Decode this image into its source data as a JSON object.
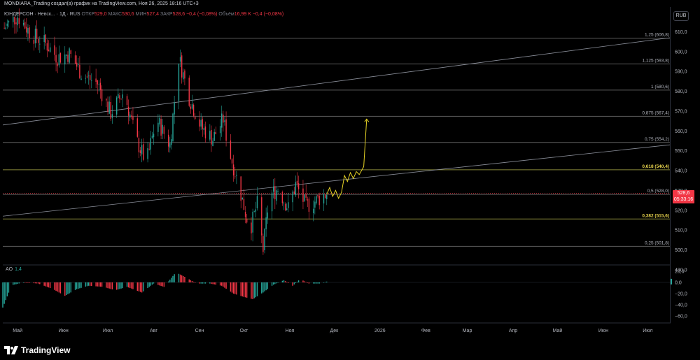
{
  "caption": "MONDIARA_Trading создал(а) график на TradingView.com, Ноя 26, 2025 18:16 UTC+3",
  "symbol_line": "ЮНДЕРСОН · Невск... · 1Д · RUS",
  "ohlc": {
    "open_label": "ОТКР",
    "open": "529,0",
    "high_label": "МАКС",
    "high": "530,6",
    "low_label": "МИН",
    "low": "527,4",
    "close_label": "ЗАКР",
    "close": "528,6",
    "change": "−0,4 (−0,08%)",
    "vol_label": "Объём",
    "vol": "16,99 K",
    "vol_change": "−0,4 (−0,08%)"
  },
  "currency": "RUB",
  "last_price": "528,6",
  "countdown": "05:33:16",
  "indicator": {
    "name": "AO",
    "value": "1,4"
  },
  "brand": "TradingView",
  "colors": {
    "up": "#26a69a",
    "down": "#f23645",
    "fib": "#8a8a3a",
    "fib_gold": "#e8d44d",
    "proj": "#e6d325"
  },
  "chart_data": {
    "type": "candlestick",
    "x_ticks": [
      "Май",
      "Июн",
      "Июл",
      "Авг",
      "Сен",
      "Окт",
      "Ноя",
      "Дек",
      "2026",
      "Фев",
      "Мар",
      "Апр",
      "Май",
      "Июн",
      "Июл"
    ],
    "y_ticks": [
      "610,0",
      "600,0",
      "590,0",
      "580,0",
      "570,0",
      "560,0",
      "550,0",
      "540,0",
      "530,0",
      "520,0",
      "510,0",
      "500,0",
      "490,0"
    ],
    "y_range": [
      485,
      618
    ],
    "fib_levels": [
      {
        "ratio": "1,25",
        "price": 606.8,
        "label": "1,25 (606,8)"
      },
      {
        "ratio": "1,125",
        "price": 593.8,
        "label": "1,125 (593,8)"
      },
      {
        "ratio": "1",
        "price": 580.6,
        "label": "1 (580,6)"
      },
      {
        "ratio": "0,875",
        "price": 567.4,
        "label": "0,875 (567,4)"
      },
      {
        "ratio": "0,75",
        "price": 554.2,
        "label": "0,75 (554,2)"
      },
      {
        "ratio": "0,618",
        "price": 540.4,
        "label": "0,618 (540,4)",
        "highlight": true
      },
      {
        "ratio": "0,5",
        "price": 528.0,
        "label": "0,5 (528,0)"
      },
      {
        "ratio": "0,382",
        "price": 515.6,
        "label": "0,382 (515,6)",
        "highlight": true
      },
      {
        "ratio": "0,25",
        "price": 501.8,
        "label": "0,25 (501,8)"
      }
    ],
    "price_path": [
      [
        "2025-04-22",
        612
      ],
      [
        "2025-05-01",
        618
      ],
      [
        "2025-05-10",
        609
      ],
      [
        "2025-05-20",
        604
      ],
      [
        "2025-05-28",
        597
      ],
      [
        "2025-06-05",
        599
      ],
      [
        "2025-06-14",
        588
      ],
      [
        "2025-06-24",
        584
      ],
      [
        "2025-07-03",
        569
      ],
      [
        "2025-07-12",
        580
      ],
      [
        "2025-07-20",
        556
      ],
      [
        "2025-07-27",
        544
      ],
      [
        "2025-08-03",
        566
      ],
      [
        "2025-08-12",
        553
      ],
      [
        "2025-08-18",
        597
      ],
      [
        "2025-08-25",
        577
      ],
      [
        "2025-09-02",
        562
      ],
      [
        "2025-09-10",
        556
      ],
      [
        "2025-09-17",
        566
      ],
      [
        "2025-09-21",
        550
      ],
      [
        "2025-09-27",
        534
      ],
      [
        "2025-10-05",
        510
      ],
      [
        "2025-10-10",
        523
      ],
      [
        "2025-10-14",
        500
      ],
      [
        "2025-10-18",
        527
      ],
      [
        "2025-10-24",
        531
      ],
      [
        "2025-10-31",
        521
      ],
      [
        "2025-11-05",
        533
      ],
      [
        "2025-11-12",
        522
      ],
      [
        "2025-11-19",
        525
      ],
      [
        "2025-11-26",
        528.6
      ]
    ],
    "projection": [
      [
        "2025-11-26",
        528
      ],
      [
        "2025-11-28",
        531.5
      ],
      [
        "2025-11-30",
        527
      ],
      [
        "2025-12-02",
        530
      ],
      [
        "2025-12-04",
        526
      ],
      [
        "2025-12-06",
        529
      ],
      [
        "2025-12-08",
        537.5
      ],
      [
        "2025-12-10",
        534.5
      ],
      [
        "2025-12-12",
        539
      ],
      [
        "2025-12-14",
        536
      ],
      [
        "2025-12-16",
        539.5
      ],
      [
        "2025-12-18",
        538
      ],
      [
        "2025-12-21",
        542
      ],
      [
        "2025-12-23",
        566
      ]
    ],
    "trendlines": [
      {
        "from": [
          "2025-04-21",
          563
        ],
        "to": [
          "2026-07-16",
          607
        ]
      },
      {
        "from": [
          "2025-04-21",
          517
        ],
        "to": [
          "2026-07-16",
          553
        ]
      }
    ],
    "ao": {
      "y_ticks": [
        "20,0",
        "0,0",
        "−20,0",
        "−40,0",
        "−60,0"
      ],
      "y_range": [
        -70,
        33
      ],
      "path": [
        [
          "2025-04-21",
          -45
        ],
        [
          "2025-04-27",
          -5
        ],
        [
          "2025-05-05",
          0
        ],
        [
          "2025-05-15",
          -2
        ],
        [
          "2025-05-25",
          -12
        ],
        [
          "2025-06-02",
          -24
        ],
        [
          "2025-06-10",
          -12
        ],
        [
          "2025-06-18",
          -6
        ],
        [
          "2025-06-28",
          -8
        ],
        [
          "2025-07-06",
          -14
        ],
        [
          "2025-07-14",
          -8
        ],
        [
          "2025-07-24",
          -18
        ],
        [
          "2025-08-01",
          -2
        ],
        [
          "2025-08-08",
          -8
        ],
        [
          "2025-08-16",
          18
        ],
        [
          "2025-08-22",
          10
        ],
        [
          "2025-08-30",
          -2
        ],
        [
          "2025-09-08",
          -2
        ],
        [
          "2025-09-16",
          -6
        ],
        [
          "2025-09-24",
          -20
        ],
        [
          "2025-10-01",
          -26
        ],
        [
          "2025-10-07",
          -30
        ],
        [
          "2025-10-14",
          -18
        ],
        [
          "2025-10-21",
          -4
        ],
        [
          "2025-10-28",
          4
        ],
        [
          "2025-11-03",
          -6
        ],
        [
          "2025-11-08",
          6
        ],
        [
          "2025-11-14",
          -2
        ],
        [
          "2025-11-21",
          -2
        ],
        [
          "2025-11-26",
          1.4
        ]
      ]
    }
  }
}
